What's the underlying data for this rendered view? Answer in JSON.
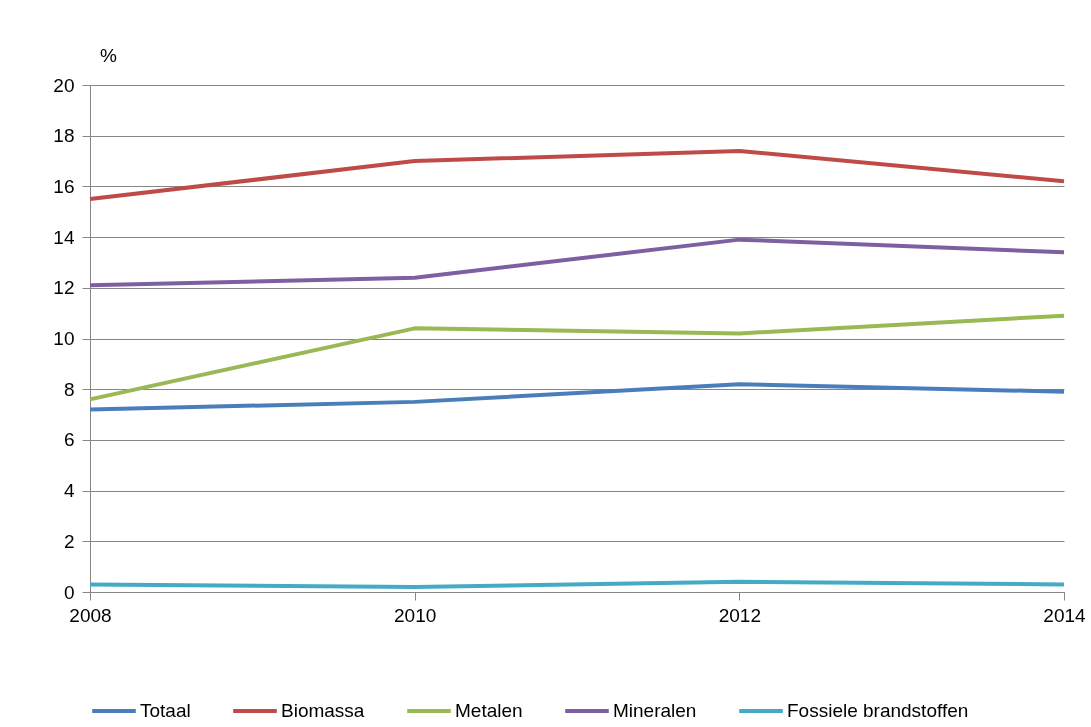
{
  "chart_data": {
    "type": "line",
    "ylabel": "%",
    "x": [
      2008,
      2010,
      2012,
      2014
    ],
    "series": [
      {
        "name": "Totaal",
        "color": "#4a7ebb",
        "values": [
          7.2,
          7.5,
          8.2,
          7.9
        ]
      },
      {
        "name": "Biomassa",
        "color": "#be4b48",
        "values": [
          15.5,
          17.0,
          17.4,
          16.2
        ]
      },
      {
        "name": "Metalen",
        "color": "#98b954",
        "values": [
          7.6,
          10.4,
          10.2,
          10.9
        ]
      },
      {
        "name": "Mineralen",
        "color": "#7d60a0",
        "values": [
          12.1,
          12.4,
          13.9,
          13.4
        ]
      },
      {
        "name": "Fossiele brandstoffen",
        "color": "#46aac5",
        "values": [
          0.3,
          0.2,
          0.4,
          0.3
        ]
      }
    ],
    "xlim": [
      2008,
      2014
    ],
    "xticks": [
      2008,
      2010,
      2012,
      2014
    ],
    "ylim": [
      0,
      20
    ],
    "yticks": [
      0,
      2,
      4,
      6,
      8,
      10,
      12,
      14,
      16,
      18,
      20
    ],
    "grid": "y",
    "legend": "bottom",
    "marker": "none",
    "line_style": "solid"
  }
}
